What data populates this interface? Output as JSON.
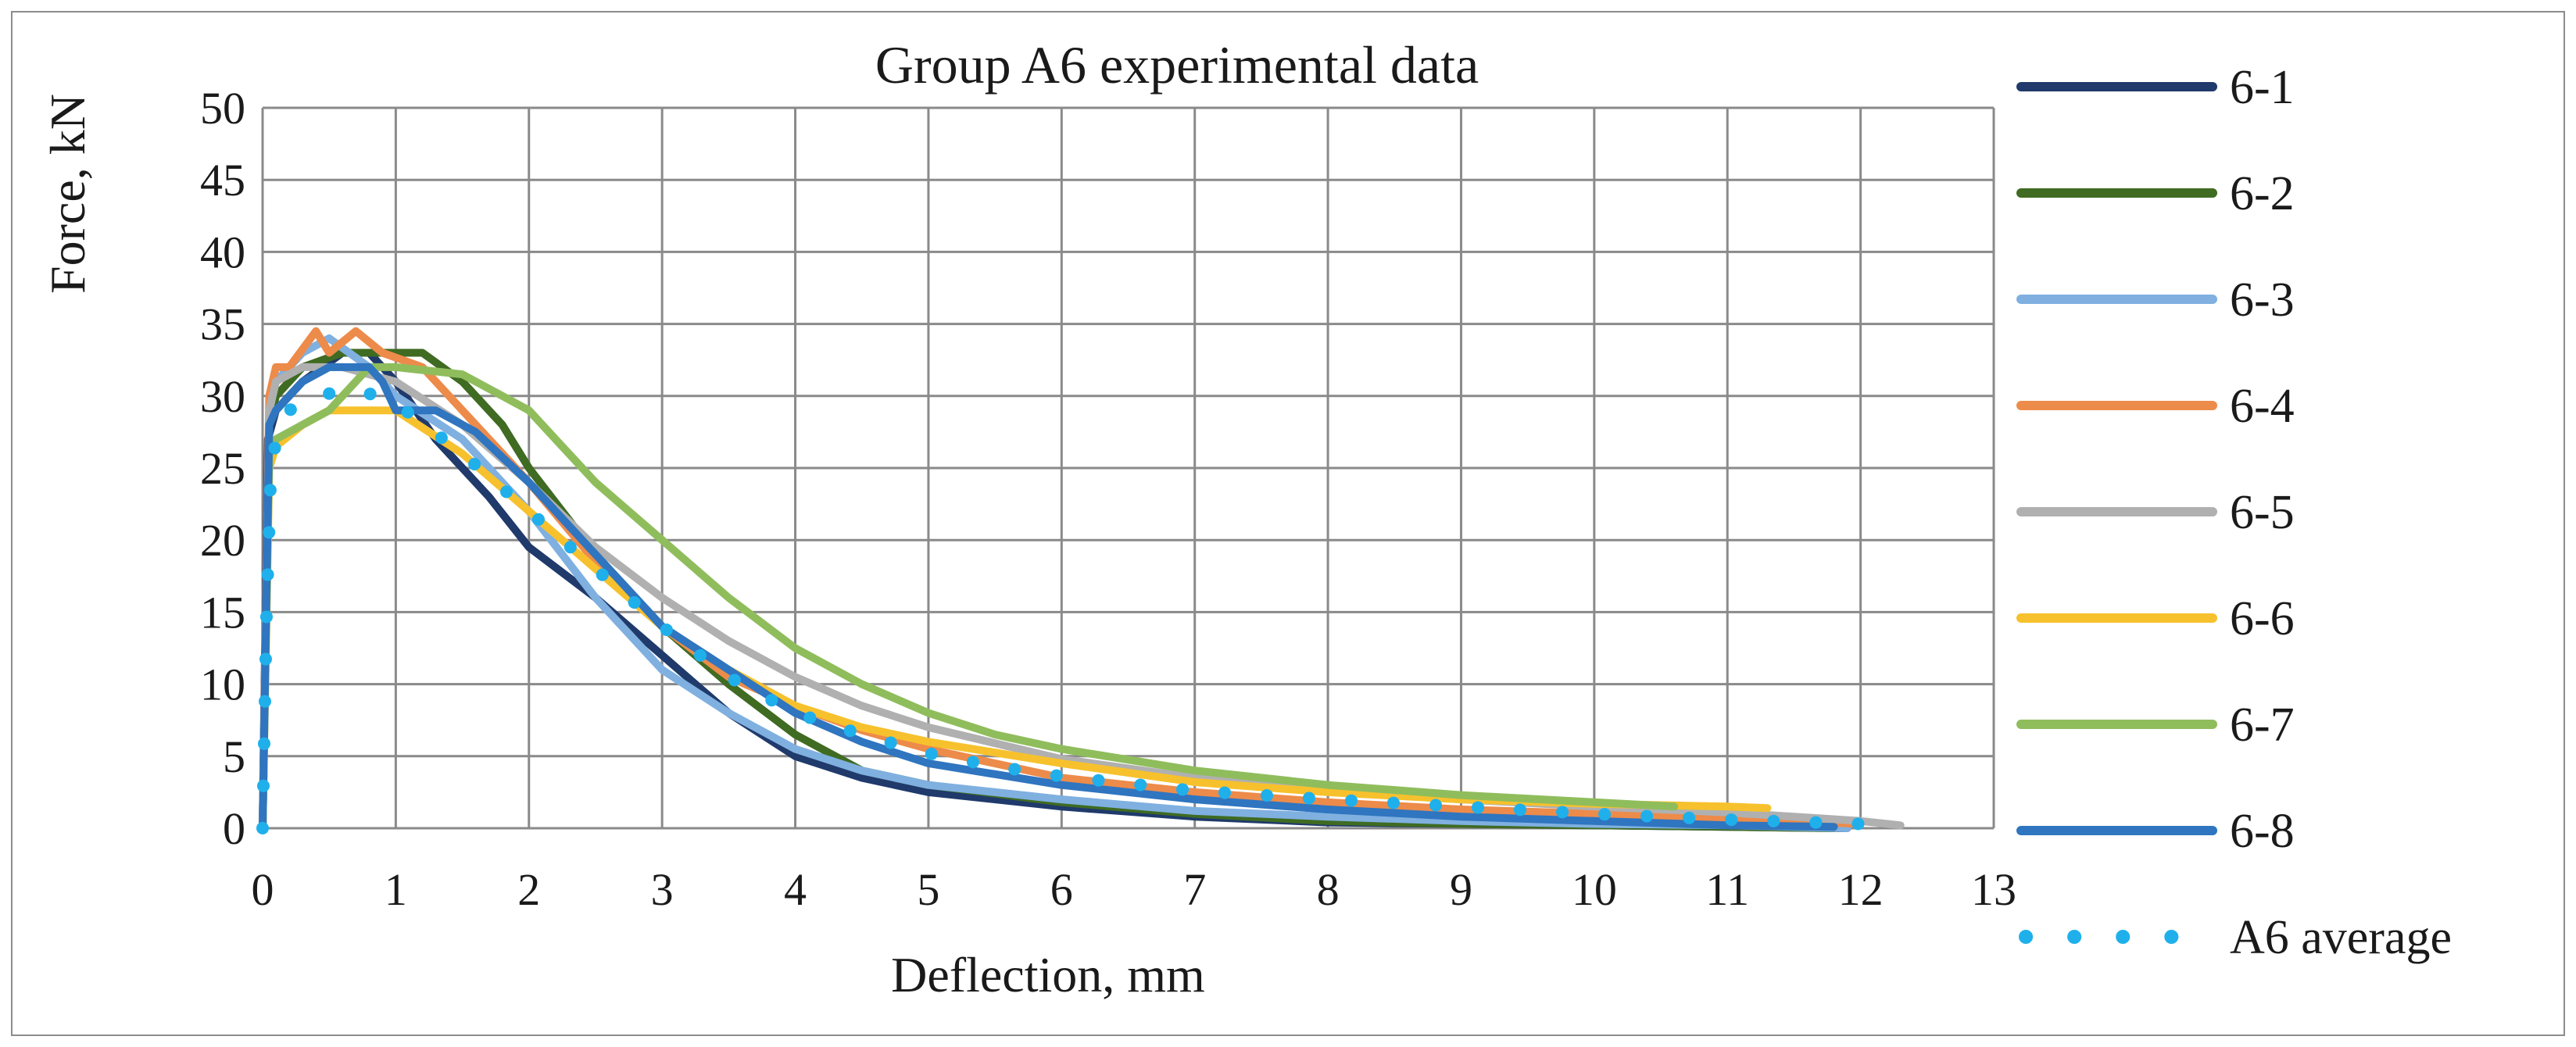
{
  "chart_data": {
    "type": "line",
    "title": "Group A6 experimental data",
    "xlabel": "Deflection, mm",
    "ylabel": "Force, kN",
    "xlim": [
      0,
      13
    ],
    "ylim": [
      0,
      50
    ],
    "xticks": [
      0,
      1,
      2,
      3,
      4,
      5,
      6,
      7,
      8,
      9,
      10,
      11,
      12,
      13
    ],
    "yticks": [
      0,
      5,
      10,
      15,
      20,
      25,
      30,
      35,
      40,
      45,
      50
    ],
    "xtick_labels": [
      "0",
      "1",
      "2",
      "3",
      "4",
      "5",
      "6",
      "7",
      "8",
      "9",
      "10",
      "11",
      "12",
      "13"
    ],
    "ytick_labels": [
      "0",
      "5",
      "10",
      "15",
      "20",
      "25",
      "30",
      "35",
      "40",
      "45",
      "50"
    ],
    "grid": true,
    "legend_position": "right",
    "series": [
      {
        "name": "6-1",
        "color": "#1f3a6b",
        "style": "solid",
        "x": [
          0,
          0.04,
          0.1,
          0.3,
          0.6,
          0.8,
          1.0,
          1.3,
          1.7,
          2.0,
          2.5,
          3.0,
          3.5,
          4.0,
          4.5,
          5.0,
          6.0,
          7.0,
          8.0,
          9.0,
          10.0,
          11.0,
          11.9
        ],
        "y": [
          0,
          27,
          29,
          31,
          33,
          33,
          31,
          27,
          23,
          19.5,
          16,
          12,
          8,
          5,
          3.5,
          2.5,
          1.5,
          0.8,
          0.4,
          0.3,
          0.2,
          0.1,
          0
        ]
      },
      {
        "name": "6-2",
        "color": "#3f6b22",
        "style": "solid",
        "x": [
          0,
          0.05,
          0.1,
          0.3,
          0.6,
          0.9,
          1.2,
          1.5,
          1.8,
          2.0,
          2.5,
          3.0,
          3.5,
          4.0,
          4.5,
          5.0,
          6.0,
          7.0,
          8.0,
          9.0,
          10.0,
          11.0,
          11.8
        ],
        "y": [
          0,
          28,
          30,
          32,
          33,
          33,
          33,
          31,
          28,
          25,
          19,
          14,
          10,
          6.5,
          4,
          3,
          1.8,
          1,
          0.5,
          0.3,
          0.2,
          0.1,
          0
        ]
      },
      {
        "name": "6-3",
        "color": "#7fb0e0",
        "style": "solid",
        "x": [
          0,
          0.05,
          0.1,
          0.3,
          0.5,
          0.8,
          1.0,
          1.5,
          2.0,
          2.5,
          3.0,
          3.5,
          4.0,
          4.5,
          5.0,
          5.5,
          6.0,
          7.0,
          8.0,
          9.0,
          10.0,
          11.0,
          11.9
        ],
        "y": [
          0,
          29,
          31,
          33,
          34,
          32,
          30,
          27,
          22,
          16,
          11,
          8,
          5.5,
          4,
          3,
          2.5,
          2,
          1.2,
          0.8,
          0.5,
          0.3,
          0.2,
          0
        ]
      },
      {
        "name": "6-4",
        "color": "#ed8b4a",
        "style": "solid",
        "x": [
          0,
          0.05,
          0.1,
          0.2,
          0.4,
          0.5,
          0.7,
          0.9,
          1.2,
          1.5,
          2.0,
          2.5,
          3.0,
          3.5,
          4.0,
          4.5,
          5.0,
          6.0,
          7.0,
          8.0,
          9.0,
          10.0,
          11.0,
          12.0
        ],
        "y": [
          0,
          30,
          32,
          32,
          34.5,
          33,
          34.5,
          33,
          32,
          29,
          24,
          18.5,
          14,
          10.5,
          8.5,
          6.8,
          5.5,
          3.5,
          2.5,
          1.8,
          1.3,
          1,
          0.7,
          0.3
        ]
      },
      {
        "name": "6-5",
        "color": "#b0b0b0",
        "style": "solid",
        "x": [
          0,
          0.05,
          0.1,
          0.3,
          0.6,
          1.0,
          1.5,
          2.0,
          2.5,
          3.0,
          3.5,
          4.0,
          4.5,
          5.0,
          6.0,
          7.0,
          8.0,
          9.0,
          10.0,
          11.0,
          12.0,
          12.3
        ],
        "y": [
          0,
          29,
          31,
          32,
          32,
          31,
          28,
          24,
          19.5,
          16,
          13,
          10.5,
          8.5,
          7,
          4.8,
          3.5,
          2.6,
          2,
          1.5,
          1.1,
          0.5,
          0.2
        ]
      },
      {
        "name": "6-6",
        "color": "#f7c12d",
        "style": "solid",
        "x": [
          0,
          0.05,
          0.1,
          0.3,
          0.5,
          0.8,
          1.0,
          1.5,
          2.0,
          2.5,
          3.0,
          3.5,
          4.0,
          4.5,
          5.0,
          6.0,
          7.0,
          8.0,
          9.0,
          10.0,
          11.0,
          11.3
        ],
        "y": [
          0,
          25,
          26.5,
          28,
          29,
          29,
          29,
          26,
          22,
          18,
          14,
          11,
          8.5,
          7,
          6,
          4.5,
          3.2,
          2.5,
          2,
          1.7,
          1.5,
          1.4
        ]
      },
      {
        "name": "6-7",
        "color": "#8fbd5c",
        "style": "solid",
        "x": [
          0,
          0.05,
          0.1,
          0.3,
          0.5,
          0.8,
          1.0,
          1.5,
          2.0,
          2.2,
          2.5,
          3.0,
          3.5,
          4.0,
          4.5,
          5.0,
          5.5,
          6.0,
          7.0,
          8.0,
          9.0,
          10.0,
          10.6
        ],
        "y": [
          0,
          26,
          27,
          28,
          29,
          32,
          32,
          31.5,
          29,
          27,
          24,
          20,
          16,
          12.5,
          10,
          8,
          6.5,
          5.5,
          4,
          3,
          2.3,
          1.8,
          1.5
        ]
      },
      {
        "name": "6-8",
        "color": "#2f75c0",
        "style": "solid",
        "x": [
          0,
          0.05,
          0.1,
          0.3,
          0.5,
          0.8,
          0.9,
          1.0,
          1.3,
          1.6,
          2.0,
          2.5,
          3.0,
          3.5,
          4.0,
          4.5,
          5.0,
          6.0,
          7.0,
          8.0,
          9.0,
          10.0,
          11.0,
          11.8
        ],
        "y": [
          0,
          28,
          29,
          31,
          32,
          32,
          31,
          29,
          29,
          27.5,
          24,
          19,
          14,
          11,
          8,
          6,
          4.5,
          3,
          2,
          1.3,
          0.8,
          0.5,
          0.2,
          0.1
        ]
      },
      {
        "name": "A6 average",
        "color": "#1fb0ec",
        "style": "dotted",
        "x": [
          0,
          0.03,
          0.06,
          0.1,
          0.2,
          0.4,
          0.7,
          1.0,
          1.5,
          2.0,
          2.5,
          3.0,
          3.5,
          4.0,
          4.5,
          5.0,
          5.5,
          6.0,
          7.0,
          8.0,
          9.0,
          10.0,
          11.0,
          12.0,
          12.2
        ],
        "y": [
          0,
          15,
          24,
          27,
          29,
          30,
          30.5,
          29.5,
          26,
          22,
          18,
          14,
          10.5,
          8,
          6.5,
          5.2,
          4.3,
          3.6,
          2.6,
          2,
          1.5,
          1,
          0.6,
          0.3,
          0.3
        ]
      }
    ]
  }
}
